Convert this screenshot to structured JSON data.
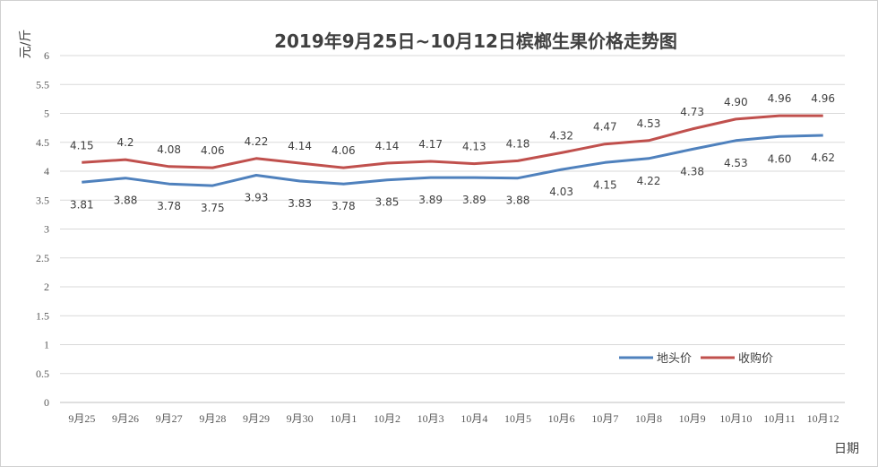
{
  "chart_data": {
    "type": "line",
    "title": "2019年9月25日~10月12日槟榔生果价格走势图",
    "xlabel": "日期",
    "ylabel": "元/斤",
    "ylim": [
      0,
      6
    ],
    "yticks": [
      "0",
      "0.5",
      "1",
      "1.5",
      "2",
      "2.5",
      "3",
      "3.5",
      "4",
      "4.5",
      "5",
      "5.5",
      "6"
    ],
    "grid": true,
    "legend_position": "lower-right",
    "categories": [
      "9月25",
      "9月26",
      "9月27",
      "9月28",
      "9月29",
      "9月30",
      "10月1",
      "10月2",
      "10月3",
      "10月4",
      "10月5",
      "10月6",
      "10月7",
      "10月8",
      "10月9",
      "10月10",
      "10月11",
      "10月12"
    ],
    "series": [
      {
        "name": "地头价",
        "color": "#4f81bd",
        "values": [
          3.81,
          3.88,
          3.78,
          3.75,
          3.93,
          3.83,
          3.78,
          3.85,
          3.89,
          3.89,
          3.88,
          4.03,
          4.15,
          4.22,
          4.38,
          4.53,
          4.6,
          4.62
        ],
        "labels": [
          "3.81",
          "3.88",
          "3.78",
          "3.75",
          "3.93",
          "3.83",
          "3.78",
          "3.85",
          "3.89",
          "3.89",
          "3.88",
          "4.03",
          "4.15",
          "4.22",
          "4.38",
          "4.53",
          "4.60",
          "4.62"
        ]
      },
      {
        "name": "收购价",
        "color": "#c0504d",
        "values": [
          4.15,
          4.2,
          4.08,
          4.06,
          4.22,
          4.14,
          4.06,
          4.14,
          4.17,
          4.13,
          4.18,
          4.32,
          4.47,
          4.53,
          4.73,
          4.9,
          4.96,
          4.96
        ],
        "labels": [
          "4.15",
          "4.2",
          "4.08",
          "4.06",
          "4.22",
          "4.14",
          "4.06",
          "4.14",
          "4.17",
          "4.13",
          "4.18",
          "4.32",
          "4.47",
          "4.53",
          "4.73",
          "4.90",
          "4.96",
          "4.96"
        ]
      }
    ]
  }
}
